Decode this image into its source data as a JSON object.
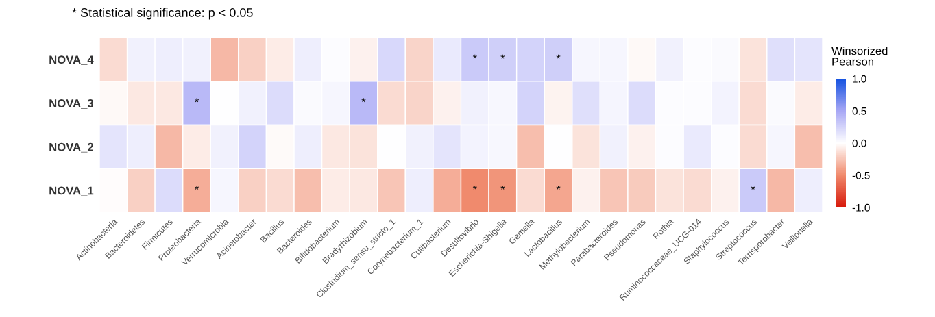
{
  "chart_data": {
    "type": "heatmap",
    "annotations": [
      "* Statistical significance: p < 0.05"
    ],
    "clabel": "Winsorized\nPearson",
    "categories": [
      "Actinobacteria",
      "Bacteroidetes",
      "Firmicutes",
      "Proteobacteria",
      "Verrucomicrobia",
      "Acinetobacter",
      "Bacillus",
      "Bacteroides",
      "Bifidobacterium",
      "Bradyrhizobium",
      "Clostridium_sensu_stricto_1",
      "Corynebacterium_1",
      "Cutibacterium",
      "Desulfovibrio",
      "Escherichia-Shigella",
      "Gemella",
      "Lactobacillus",
      "Methylobacterium",
      "Parabacteroides",
      "Pseudomonas",
      "Rothia",
      "Ruminococcaceae_UCG-014",
      "Staphylococcus",
      "Streptococcus",
      "Terrisporobacter",
      "Veillonella"
    ],
    "y_categories": [
      "NOVA_4",
      "NOVA_3",
      "NOVA_2",
      "NOVA_1"
    ],
    "cells": [
      [
        -0.15,
        0.08,
        0.1,
        0.08,
        -0.3,
        -0.2,
        -0.08,
        0.1,
        0.02,
        -0.06,
        0.22,
        -0.18,
        0.12,
        0.3,
        0.28,
        0.25,
        0.28,
        0.05,
        0.05,
        -0.03,
        0.08,
        0.02,
        0.03,
        -0.12,
        0.18,
        0.15
      ],
      [
        -0.03,
        -0.1,
        -0.1,
        0.4,
        0.0,
        0.08,
        0.2,
        0.03,
        0.05,
        0.4,
        -0.15,
        -0.18,
        -0.06,
        0.08,
        0.04,
        0.25,
        -0.05,
        0.18,
        0.06,
        0.2,
        0.02,
        0.02,
        0.07,
        -0.15,
        0.03,
        -0.08
      ],
      [
        0.15,
        0.1,
        -0.3,
        -0.08,
        0.08,
        0.25,
        -0.02,
        0.1,
        -0.1,
        -0.12,
        0.0,
        0.08,
        0.15,
        0.07,
        0.04,
        -0.28,
        0.0,
        -0.12,
        0.08,
        -0.06,
        0.02,
        0.12,
        0.02,
        -0.15,
        0.05,
        -0.28
      ],
      [
        -0.01,
        -0.2,
        0.2,
        -0.35,
        0.05,
        -0.2,
        -0.15,
        -0.28,
        -0.08,
        -0.1,
        -0.25,
        0.1,
        -0.35,
        -0.5,
        -0.45,
        -0.15,
        -0.38,
        -0.06,
        -0.25,
        -0.22,
        -0.12,
        -0.15,
        -0.06,
        0.3,
        -0.3,
        0.1
      ]
    ],
    "cell_labels": [
      [
        null,
        null,
        null,
        null,
        null,
        null,
        null,
        null,
        null,
        null,
        null,
        null,
        null,
        "*",
        "*",
        null,
        "*",
        null,
        null,
        null,
        null,
        null,
        null,
        null,
        null,
        null
      ],
      [
        null,
        null,
        null,
        "*",
        null,
        null,
        null,
        null,
        null,
        "*",
        null,
        null,
        null,
        null,
        null,
        null,
        null,
        null,
        null,
        null,
        null,
        null,
        null,
        null,
        null,
        null
      ],
      [
        null,
        null,
        null,
        null,
        null,
        null,
        null,
        null,
        null,
        null,
        null,
        null,
        null,
        null,
        null,
        null,
        null,
        null,
        null,
        null,
        null,
        null,
        null,
        null,
        null,
        null
      ],
      [
        null,
        null,
        null,
        "*",
        null,
        null,
        null,
        null,
        null,
        null,
        null,
        null,
        null,
        "*",
        "*",
        null,
        "*",
        null,
        null,
        null,
        null,
        null,
        null,
        "*",
        null,
        null
      ]
    ],
    "clim": [
      -1,
      1
    ],
    "cticks": [
      {
        "value": -1,
        "label": "-1.0"
      },
      {
        "value": -0.5,
        "label": "-0.5"
      },
      {
        "value": 0,
        "label": "0.0"
      },
      {
        "value": 0.5,
        "label": "0.5"
      },
      {
        "value": 1,
        "label": "1.0"
      }
    ]
  }
}
